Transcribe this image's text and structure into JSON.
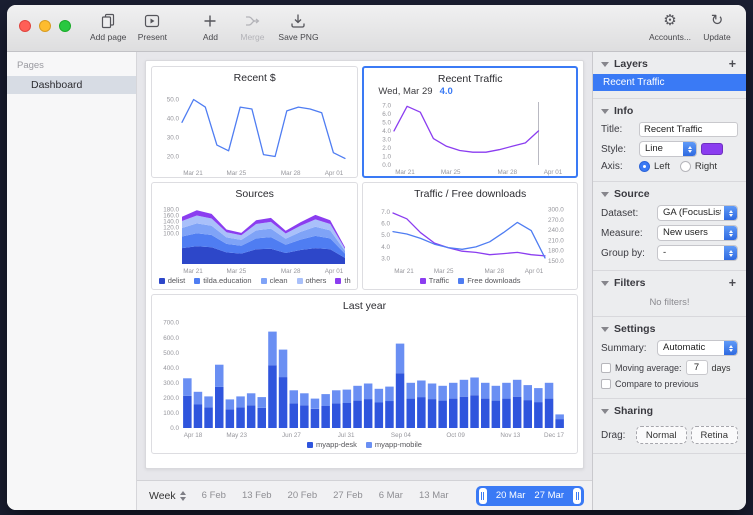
{
  "toolbar": {
    "add_page": "Add page",
    "present": "Present",
    "add": "Add",
    "merge": "Merge",
    "save_png": "Save PNG",
    "accounts": "Accounts...",
    "update": "Update"
  },
  "icons": {
    "accounts_glyph": "⚙",
    "update_glyph": "↻"
  },
  "sidebar": {
    "header": "Pages",
    "items": [
      {
        "label": "Dashboard",
        "selected": true
      }
    ]
  },
  "timeline": {
    "period": "Week",
    "ticks": [
      "6 Feb",
      "13 Feb",
      "20 Feb",
      "27 Feb",
      "6 Mar",
      "13 Mar"
    ],
    "selected": [
      "20 Mar",
      "27 Mar"
    ]
  },
  "colors": {
    "selection_blue": "#3a7af5",
    "line_blue": "#4f7df2",
    "line_purple": "#8b3df0"
  },
  "inspector": {
    "layers": {
      "title": "Layers",
      "add_label": "+",
      "items": [
        {
          "label": "Recent Traffic",
          "selected": true
        }
      ]
    },
    "info": {
      "title": "Info",
      "title_label": "Title:",
      "title_value": "Recent Traffic",
      "style_label": "Style:",
      "style_value": "Line",
      "style_color": "#8b3df0",
      "axis_label": "Axis:",
      "axis_left": "Left",
      "axis_right": "Right",
      "axis_selected": "Left"
    },
    "source": {
      "title": "Source",
      "dataset_label": "Dataset:",
      "dataset_value": "GA (FocusList → Pop",
      "measure_label": "Measure:",
      "measure_value": "New users",
      "group_label": "Group by:",
      "group_value": "-"
    },
    "filters": {
      "title": "Filters",
      "add_label": "+",
      "empty_text": "No filters!"
    },
    "settings": {
      "title": "Settings",
      "summary_label": "Summary:",
      "summary_value": "Automatic",
      "moving_average_label": "Moving average:",
      "moving_average_value": "7",
      "moving_average_unit": "days",
      "compare_label": "Compare to previous"
    },
    "sharing": {
      "title": "Sharing",
      "drag_label": "Drag:",
      "normal": "Normal",
      "retina": "Retina"
    }
  },
  "chart_data": [
    {
      "id": "recent-dollar",
      "type": "line",
      "title": "Recent $",
      "x_ticks": [
        "Mar 21",
        "Mar 25",
        "Mar 28",
        "Apr 01"
      ],
      "y_ticks": [
        50,
        40,
        30,
        20
      ],
      "ylim": [
        15,
        55
      ],
      "series": [
        {
          "name": "$",
          "color": "#4f7df2",
          "values": [
            38,
            50,
            46,
            26,
            23,
            46,
            45,
            21,
            20,
            44,
            46,
            45,
            43,
            22,
            19
          ]
        }
      ]
    },
    {
      "id": "recent-traffic",
      "type": "line",
      "title": "Recent Traffic",
      "x_ticks": [
        "Mar 21",
        "Mar 25",
        "Mar 28",
        "Apr 01"
      ],
      "y_ticks": [
        7,
        6,
        5,
        4,
        3,
        2,
        1,
        0
      ],
      "ylim": [
        0,
        7.4
      ],
      "annotation": {
        "date": "Wed, Mar 29",
        "value": "4.0",
        "x_frac": 0.85
      },
      "series": [
        {
          "name": "Traffic",
          "color": "#8b3df0",
          "span": 0.85,
          "values": [
            4,
            6.9,
            6.2,
            3.1,
            2.2,
            1.7,
            1.5,
            1.5,
            1.8,
            2.2,
            2.6,
            4
          ]
        }
      ]
    },
    {
      "id": "sources",
      "type": "area",
      "title": "Sources",
      "x_ticks": [
        "Mar 21",
        "Mar 25",
        "Mar 28",
        "Apr 01"
      ],
      "y_ticks": [
        180,
        160,
        140,
        120,
        100
      ],
      "ylim": [
        0,
        190
      ],
      "series": [
        {
          "name": "delist",
          "color": "#2d47c9",
          "values": [
            52,
            58,
            55,
            38,
            34,
            48,
            50,
            36,
            46,
            52,
            48,
            20
          ]
        },
        {
          "name": "tilda.education",
          "color": "#4f7df2",
          "values": [
            38,
            43,
            40,
            28,
            26,
            36,
            38,
            27,
            34,
            40,
            36,
            14
          ]
        },
        {
          "name": "clean",
          "color": "#7fa3f7",
          "values": [
            28,
            32,
            30,
            21,
            19,
            26,
            28,
            20,
            25,
            30,
            26,
            9
          ]
        },
        {
          "name": "others",
          "color": "#a9c0fa",
          "values": [
            23,
            26,
            24,
            17,
            15,
            21,
            22,
            17,
            20,
            24,
            21,
            7
          ]
        },
        {
          "name": "th",
          "color": "#8b3df0",
          "values": [
            14,
            17,
            15,
            9,
            8,
            12,
            13,
            9,
            12,
            15,
            12,
            5
          ]
        }
      ]
    },
    {
      "id": "traffic-downloads",
      "type": "line",
      "title": "Traffic / Free downloads",
      "x_ticks": [
        "Mar 21",
        "Mar 25",
        "Mar 28",
        "Apr 01"
      ],
      "y_ticks": [
        7,
        6,
        5,
        4,
        3
      ],
      "ylim": [
        2.5,
        7.5
      ],
      "y2_ticks": [
        300,
        270,
        240,
        210,
        180,
        150
      ],
      "y2lim": [
        140,
        310
      ],
      "series": [
        {
          "name": "Traffic",
          "color": "#8b3df0",
          "axis": "left",
          "values": [
            6.9,
            6.4,
            5.2,
            4.3,
            3.9,
            3.6,
            3.5,
            3.3,
            3.4,
            3.5,
            3.3,
            3.2
          ]
        },
        {
          "name": "Free downloads",
          "color": "#4f7df2",
          "axis": "right",
          "values": [
            235,
            228,
            215,
            198,
            188,
            183,
            190,
            205,
            232,
            262,
            238,
            158
          ]
        }
      ]
    },
    {
      "id": "last-year",
      "type": "bar",
      "title": "Last year",
      "x_ticks": [
        "Apr 18",
        "May 23",
        "Jun 27",
        "Jul 31",
        "Sep 04",
        "Oct 09",
        "Nov 13",
        "Dec 17"
      ],
      "y_ticks": [
        700,
        600,
        500,
        400,
        300,
        200,
        100,
        0
      ],
      "ylim": [
        0,
        730
      ],
      "series": [
        {
          "name": "myapp-desk",
          "color": "#2f55dd",
          "values": [
            214,
            156,
            137,
            273,
            124,
            137,
            150,
            133,
            416,
            338,
            163,
            150,
            127,
            146,
            163,
            166,
            182,
            192,
            169,
            179,
            364,
            195,
            205,
            192,
            182,
            195,
            208,
            218,
            195,
            182,
            195,
            208,
            185,
            172,
            195,
            59
          ]
        },
        {
          "name": "myapp-mobile",
          "color": "#6a8ff3",
          "values": [
            116,
            84,
            73,
            147,
            66,
            73,
            80,
            72,
            224,
            182,
            87,
            80,
            68,
            79,
            87,
            89,
            98,
            103,
            91,
            96,
            196,
            105,
            110,
            103,
            98,
            105,
            112,
            117,
            105,
            98,
            105,
            112,
            100,
            93,
            105,
            31
          ]
        }
      ]
    }
  ]
}
